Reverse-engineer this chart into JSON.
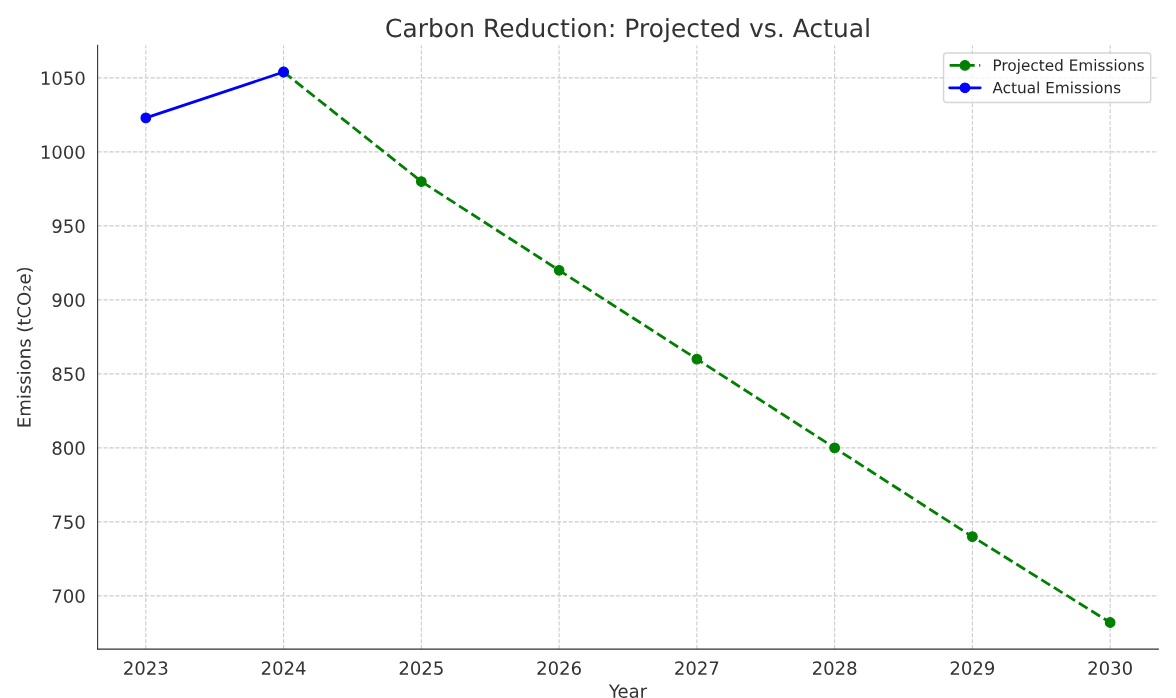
{
  "chart_data": {
    "type": "line",
    "title": "Carbon Reduction: Projected vs. Actual",
    "xlabel": "Year",
    "ylabel": "Emissions (tCO₂e)",
    "series": [
      {
        "name": "Projected Emissions",
        "color": "#008000",
        "x": [
          2024,
          2025,
          2026,
          2027,
          2028,
          2029,
          2030
        ],
        "values": [
          1054,
          980,
          920,
          860,
          800,
          740,
          682
        ],
        "line_style": "dashed",
        "marker": "circle"
      },
      {
        "name": "Actual Emissions",
        "color": "#0000ff",
        "x": [
          2023,
          2024
        ],
        "values": [
          1023,
          1054
        ],
        "line_style": "solid",
        "marker": "circle"
      }
    ],
    "xlim": [
      2022.65,
      2030.35
    ],
    "xticks": [
      2023,
      2024,
      2025,
      2026,
      2027,
      2028,
      2029,
      2030
    ],
    "ylim": [
      664,
      1072
    ],
    "yticks": [
      700,
      750,
      800,
      850,
      900,
      950,
      1000,
      1050
    ],
    "grid": true,
    "legend": "top right"
  }
}
